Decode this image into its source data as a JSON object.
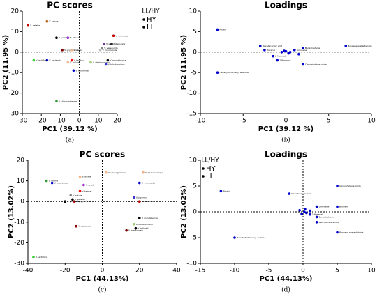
{
  "chart_data": [
    {
      "type": "scatter",
      "title": "PC scores",
      "xlabel": "PC1 (39.12 %)",
      "ylabel": "PC2 (11.95 %)",
      "caption": "(a)",
      "xlim": [
        -30,
        20
      ],
      "ylim": [
        -30,
        20
      ],
      "xticks": [
        -30,
        -20,
        -10,
        0,
        10,
        20
      ],
      "yticks": [
        -30,
        -20,
        -10,
        0,
        10,
        20
      ],
      "zero_lines": true,
      "legend_title": "LL/HY",
      "legend_items": [
        "HY",
        "LL"
      ],
      "series": [
        {
          "x": [
            -17,
            -27,
            -12,
            -6,
            -9,
            -4,
            -17,
            -24,
            -4,
            -6,
            -3,
            -12,
            18,
            17,
            12,
            15,
            14,
            6,
            13,
            11
          ],
          "values": [
            15,
            13,
            7,
            7,
            1,
            1,
            -4,
            -4,
            -4,
            -5,
            -9,
            -24,
            8,
            4,
            2,
            -4,
            -6,
            -5,
            4,
            1
          ],
          "colors": [
            "#b5651d",
            "#c00000",
            "#000000",
            "#9933cc",
            "#800000",
            "#f4b183",
            "#0000cc",
            "#33cc33",
            "#ff0000",
            "#f4b183",
            "#0000cc",
            "#339933",
            "#c00000",
            "#333333",
            "#888888",
            "#000000",
            "#3333cc",
            "#99cc66",
            "#7030a0",
            "#bbbbbb"
          ],
          "point_labels": [
            "V. patula",
            "V. yatabei",
            "V. yezoensis",
            "V. albida",
            "V. grypoceras",
            "V. rossii",
            "V. variegata",
            "V. lactiflora",
            "V. keiskei",
            "V. collina",
            "V. acuminata",
            "V. ulleungdoensis",
            "V. orientalis",
            "V. japonica",
            "V. verecunda",
            "V. mandshurica",
            "V. tokubuchiana",
            "V. phalacrocarpa",
            "V. selkirkii",
            "V. hondoensis"
          ]
        }
      ]
    },
    {
      "type": "scatter",
      "title": "Loadings",
      "xlabel": "PC1 (39.12 %)",
      "ylabel": "PC2 (11.95 %)",
      "caption": "(b)",
      "xlim": [
        -10,
        10
      ],
      "ylim": [
        -15,
        10
      ],
      "xticks": [
        -10,
        -5,
        0,
        5,
        10
      ],
      "yticks": [
        -15,
        -10,
        -5,
        0,
        5,
        10
      ],
      "zero_lines": true,
      "series": [
        {
          "x": [
            -8,
            -3,
            -2.5,
            7,
            2,
            -8,
            -1.5,
            -1,
            1,
            2,
            0.5,
            -0.5,
            0,
            0.3,
            1.5,
            -0.2
          ],
          "values": [
            5.5,
            1.5,
            0.5,
            1.5,
            -3,
            -5,
            -1,
            -2,
            0.5,
            1,
            0,
            0,
            0.2,
            -0.3,
            -0.5,
            0.3
          ],
          "colors": [
            "#0000cc",
            "#0000cc",
            "#0000cc",
            "#0000cc",
            "#0000cc",
            "#0000cc",
            "#0000cc",
            "#0000cc",
            "#0000cc",
            "#0000cc",
            "#0000cc",
            "#0000cc",
            "#0000cc",
            "#0000cc",
            "#0000cc",
            "#0000cc"
          ],
          "point_labels": [
            "Phytol",
            "Hexadecanoic acid",
            "Hexanal",
            "Benzene acetaldehyde",
            "Caryophyllene oxide",
            "Hexahydrofarnesyl acetone",
            "2-Hexenal",
            "1-Pentanol",
            "Limonene",
            "Benzaldehyde",
            "",
            "",
            "",
            "",
            "",
            ""
          ]
        }
      ]
    },
    {
      "type": "scatter",
      "title": "PC scores",
      "xlabel": "PC1 (44.13%)",
      "ylabel": "PC2 (13.02%)",
      "caption": "(c)",
      "xlim": [
        -40,
        40
      ],
      "ylim": [
        -30,
        20
      ],
      "xticks": [
        -40,
        -20,
        0,
        20,
        40
      ],
      "yticks": [
        -30,
        -20,
        -10,
        0,
        10,
        20
      ],
      "zero_lines": true,
      "legend_title": "LL/HY",
      "legend_items": [
        "HY",
        "LL"
      ],
      "series": [
        {
          "x": [
            -30,
            -27,
            -12,
            -10,
            -12,
            -17,
            -16,
            -15,
            -20,
            -14,
            -37,
            2,
            22,
            20,
            17,
            20,
            20,
            17,
            18,
            13
          ],
          "values": [
            10,
            9,
            12,
            8,
            5,
            3,
            1,
            0,
            0,
            -12,
            -27,
            14,
            14,
            9,
            2,
            0,
            -8,
            -11,
            -13,
            -14
          ],
          "colors": [
            "#339933",
            "#0000cc",
            "#f4b183",
            "#9933cc",
            "#ff0000",
            "#888888",
            "#000000",
            "#c00000",
            "#000000",
            "#800000",
            "#33cc33",
            "#f4b183",
            "#f4b183",
            "#0000cc",
            "#3333cc",
            "#c00000",
            "#000000",
            "#99cc66",
            "#000000",
            "#800000"
          ],
          "point_labels": [
            "V. collina",
            "V. acuminata",
            "V. albida",
            "V. rossii",
            "V. keiskei",
            "V. patula",
            "V. yatabei",
            "V. grypoceras",
            "V. yezoensis",
            "V. variegata",
            "V. lactiflora",
            "V. ulleungdoensis",
            "V. phalacrocarpa",
            "V. verecunda",
            "V. japonica",
            "V. orientalis",
            "V. mandshurica",
            "V. tokubuchiana",
            "V. selkirkii",
            "V. hondoensis"
          ]
        }
      ]
    },
    {
      "type": "scatter",
      "title": "Loadings",
      "xlabel": "PC1 (44.13%)",
      "ylabel": "PC2 (13.02%)",
      "caption": "(d)",
      "xlim": [
        -15,
        10
      ],
      "ylim": [
        -10,
        10
      ],
      "xticks": [
        -15,
        -10,
        -5,
        0,
        5,
        10
      ],
      "yticks": [
        -10,
        -5,
        0,
        5,
        10
      ],
      "zero_lines": true,
      "series": [
        {
          "x": [
            -12,
            -2,
            5,
            2,
            5,
            1,
            2,
            2,
            5,
            -10,
            0.2,
            -0.5,
            0.5,
            0.3,
            1,
            -0.2
          ],
          "values": [
            4,
            3.5,
            5,
            1,
            1,
            -0.5,
            -1,
            -2,
            -4,
            -5,
            0,
            0.3,
            -0.2,
            0.5,
            0.2,
            -0.4
          ],
          "colors": [
            "#0000cc",
            "#0000cc",
            "#0000cc",
            "#0000cc",
            "#0000cc",
            "#0000cc",
            "#0000cc",
            "#0000cc",
            "#0000cc",
            "#0000cc",
            "#0000cc",
            "#0000cc",
            "#0000cc",
            "#0000cc",
            "#0000cc",
            "#0000cc"
          ],
          "point_labels": [
            "Phytol",
            "Hexadecanoic acid",
            "Caryophyllene oxide",
            "Limonene",
            "Benzene",
            "2-Hexenal",
            "Benzaldehyde",
            "beta-Damascenone",
            "Benzene acetaldehyde",
            "Hexahydrofarnesyl acetone",
            "",
            "",
            "",
            "",
            "",
            ""
          ]
        }
      ]
    }
  ]
}
